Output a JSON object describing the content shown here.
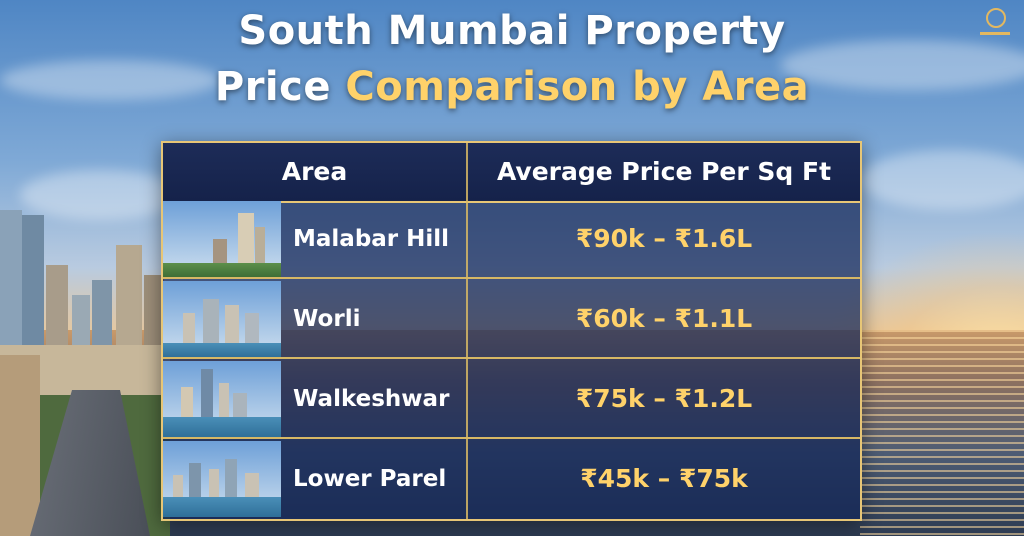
{
  "title": {
    "line1": "South Mumbai Property",
    "line2_plain": "Price ",
    "line2_highlight": "Comparison by Area"
  },
  "colors": {
    "accent": "#ffd26a",
    "border": "#e7c676",
    "table_bg": "#122658"
  },
  "table": {
    "headers": [
      "Area",
      "Average Price Per Sq Ft"
    ],
    "rows": [
      {
        "area": "Malabar Hill",
        "price": "₹90k – ₹1.6L",
        "thumbnail_icon": "skyline-photo"
      },
      {
        "area": "Worli",
        "price": "₹60k – ₹1.1L",
        "thumbnail_icon": "skyline-photo"
      },
      {
        "area": "Walkeshwar",
        "price": "₹75k – ₹1.2L",
        "thumbnail_icon": "skyline-photo"
      },
      {
        "area": "Lower Parel",
        "price": "₹45k – ₹75k",
        "thumbnail_icon": "skyline-photo"
      }
    ]
  }
}
